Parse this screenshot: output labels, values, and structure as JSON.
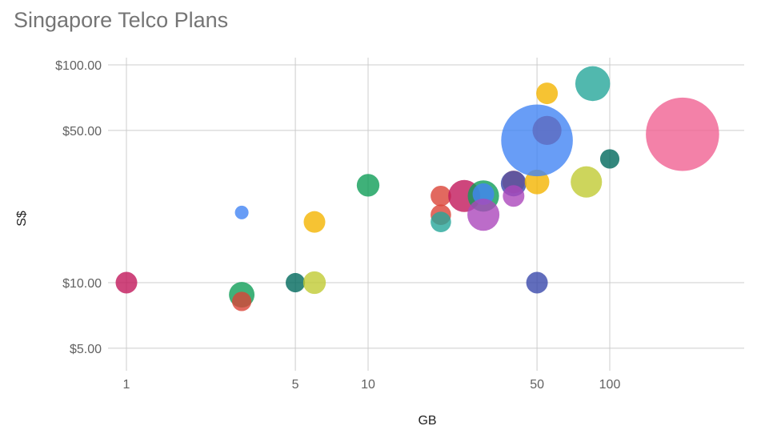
{
  "chart_data": {
    "type": "scatter",
    "title": "Singapore Telco Plans",
    "xlabel": "GB",
    "ylabel": "S$",
    "x_scale": "log",
    "y_scale": "log",
    "xlim": [
      0.9,
      300
    ],
    "ylim": [
      4.3,
      130
    ],
    "x_ticks": [
      {
        "value": 1,
        "label": "1"
      },
      {
        "value": 5,
        "label": "5"
      },
      {
        "value": 10,
        "label": "10"
      },
      {
        "value": 50,
        "label": "50"
      },
      {
        "value": 100,
        "label": "100"
      }
    ],
    "y_ticks": [
      {
        "value": 5,
        "label": "$5.00"
      },
      {
        "value": 10,
        "label": "$10.00"
      },
      {
        "value": 50,
        "label": "$50.00"
      },
      {
        "value": 100,
        "label": "$100.00"
      }
    ],
    "grid": true,
    "legend": "none",
    "points": [
      {
        "x": 1,
        "y": 10,
        "size": 1,
        "color": "#c2185b"
      },
      {
        "x": 3,
        "y": 21,
        "size": 0.4,
        "color": "#4285f4"
      },
      {
        "x": 3,
        "y": 8.8,
        "size": 1.4,
        "color": "#0f9d58"
      },
      {
        "x": 3,
        "y": 8.2,
        "size": 0.8,
        "color": "#db4437"
      },
      {
        "x": 5,
        "y": 10,
        "size": 0.8,
        "color": "#00695c"
      },
      {
        "x": 6,
        "y": 10,
        "size": 1.1,
        "color": "#c0ca33"
      },
      {
        "x": 6,
        "y": 19,
        "size": 1,
        "color": "#f4b400"
      },
      {
        "x": 10,
        "y": 28,
        "size": 1.1,
        "color": "#0f9d58"
      },
      {
        "x": 20,
        "y": 25,
        "size": 0.9,
        "color": "#db4437"
      },
      {
        "x": 20,
        "y": 20.5,
        "size": 0.9,
        "color": "#db4437"
      },
      {
        "x": 20,
        "y": 19,
        "size": 0.9,
        "color": "#26a69a"
      },
      {
        "x": 25,
        "y": 25,
        "size": 2.2,
        "color": "#c2185b"
      },
      {
        "x": 30,
        "y": 25,
        "size": 2.1,
        "color": "#0f9d58"
      },
      {
        "x": 30,
        "y": 25.5,
        "size": 1,
        "color": "#4285f4"
      },
      {
        "x": 30,
        "y": 20.5,
        "size": 2.2,
        "color": "#ab47bc"
      },
      {
        "x": 40,
        "y": 29,
        "size": 1.1,
        "color": "#ff7043"
      },
      {
        "x": 40,
        "y": 28.5,
        "size": 1.4,
        "color": "#3949ab"
      },
      {
        "x": 40,
        "y": 25,
        "size": 1,
        "color": "#ab47bc"
      },
      {
        "x": 50,
        "y": 29,
        "size": 1.3,
        "color": "#f4b400"
      },
      {
        "x": 50,
        "y": 10,
        "size": 1,
        "color": "#3949ab"
      },
      {
        "x": 50,
        "y": 45,
        "size": 11,
        "color": "#4285f4"
      },
      {
        "x": 55,
        "y": 50,
        "size": 1.8,
        "color": "#5c6bc0"
      },
      {
        "x": 55,
        "y": 74,
        "size": 1,
        "color": "#f4b400"
      },
      {
        "x": 80,
        "y": 29,
        "size": 2.1,
        "color": "#c0ca33"
      },
      {
        "x": 85,
        "y": 82,
        "size": 2.6,
        "color": "#26a69a"
      },
      {
        "x": 100,
        "y": 37,
        "size": 0.8,
        "color": "#00695c"
      },
      {
        "x": 200,
        "y": 48,
        "size": 11.5,
        "color": "#f06292"
      }
    ]
  }
}
